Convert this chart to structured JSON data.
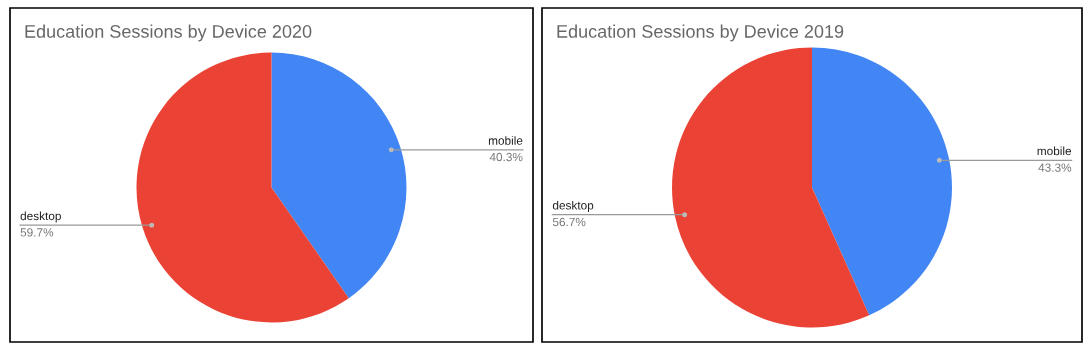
{
  "chart_data": [
    {
      "type": "pie",
      "title": "Education Sessions by Device 2020",
      "categories": [
        "mobile",
        "desktop"
      ],
      "values": [
        40.3,
        59.7
      ],
      "value_labels": [
        "40.3%",
        "59.7%"
      ],
      "colors": [
        "#4285f4",
        "#ea4335"
      ],
      "legend": false
    },
    {
      "type": "pie",
      "title": "Education Sessions by Device 2019",
      "categories": [
        "mobile",
        "desktop"
      ],
      "values": [
        43.3,
        56.7
      ],
      "value_labels": [
        "43.3%",
        "56.7%"
      ],
      "colors": [
        "#4285f4",
        "#ea4335"
      ],
      "legend": false
    }
  ]
}
